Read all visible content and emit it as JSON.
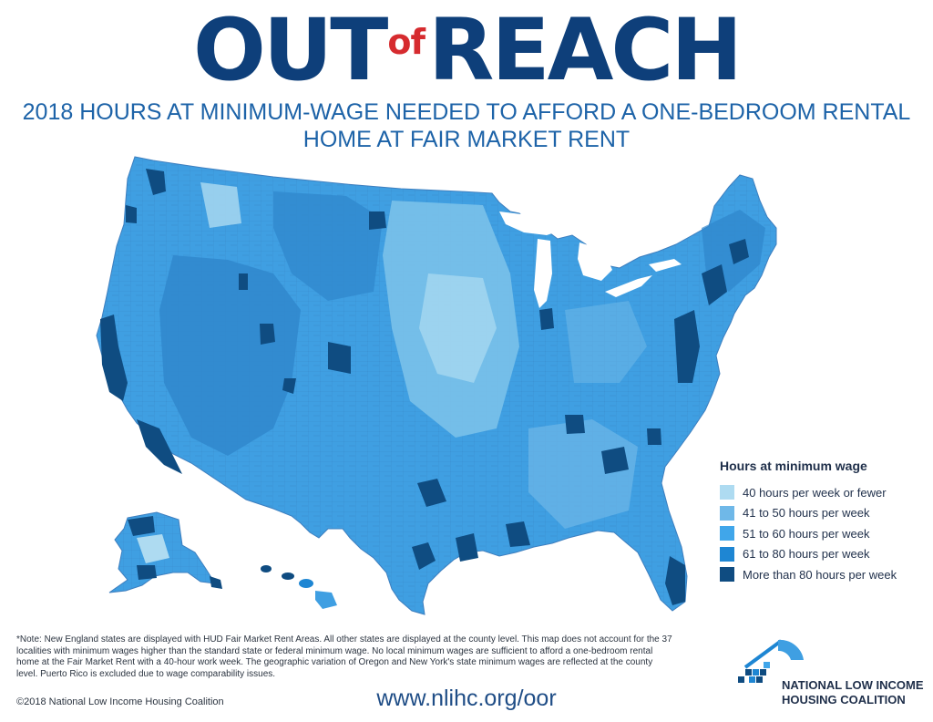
{
  "title": {
    "part1": "OUT",
    "connector": "of",
    "part2": "REACH"
  },
  "subtitle": {
    "line1": "2018 HOURS AT MINIMUM-WAGE NEEDED TO AFFORD A ONE-BEDROOM RENTAL",
    "line2": "HOME AT FAIR MARKET RENT"
  },
  "legend": {
    "title": "Hours at minimum wage",
    "items": [
      {
        "label": "40 hours per week or fewer",
        "color": "#aedbf1"
      },
      {
        "label": "41 to 50 hours per week",
        "color": "#6fb8e8"
      },
      {
        "label": "51 to 60 hours per week",
        "color": "#40a6ea"
      },
      {
        "label": "61 to 80 hours per week",
        "color": "#1e86d3"
      },
      {
        "label": "More than 80 hours per week",
        "color": "#0f4c81"
      }
    ]
  },
  "note": "*Note: New England states are displayed with HUD Fair Market Rent Areas. All other states are displayed at the county level. This map does not account for the 37 localities with minimum wages higher than the standard state or federal minimum wage. No local minimum wages are sufficient to afford a one-bedroom rental home at the Fair Market Rent with a 40-hour work week. The geographic variation of Oregon and New York's state minimum wages are reflected at the county level.  Puerto Rico is excluded due to wage comparability issues.",
  "copyright": "©2018 National Low Income Housing Coalition",
  "url": "www.nlihc.org/oor",
  "logo": {
    "line1": "NATIONAL LOW INCOME",
    "line2": "HOUSING COALITION"
  }
}
